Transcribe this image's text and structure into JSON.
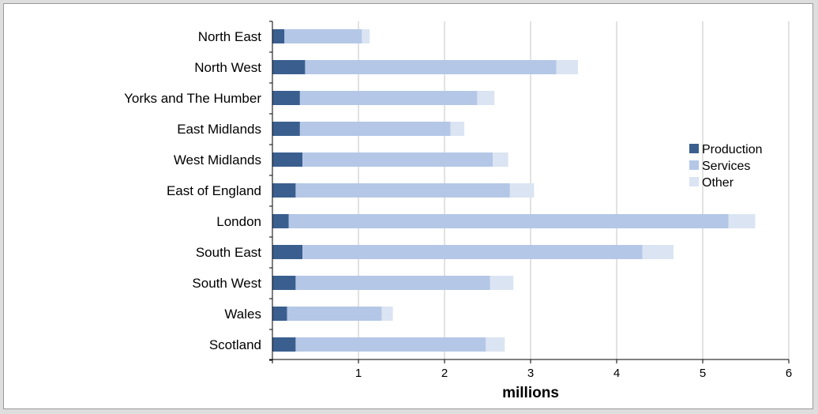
{
  "chart_data": {
    "type": "bar",
    "orientation": "horizontal",
    "stacked": true,
    "categories": [
      "North East",
      "North West",
      "Yorks and The Humber",
      "East Midlands",
      "West Midlands",
      "East of England",
      "London",
      "South East",
      "South West",
      "Wales",
      "Scotland"
    ],
    "series": [
      {
        "name": "Production",
        "color": "#3a5f8f",
        "values": [
          0.14,
          0.38,
          0.32,
          0.32,
          0.35,
          0.27,
          0.19,
          0.35,
          0.27,
          0.17,
          0.27
        ]
      },
      {
        "name": "Services",
        "color": "#b4c7e7",
        "values": [
          0.9,
          2.92,
          2.06,
          1.75,
          2.21,
          2.49,
          5.11,
          3.95,
          2.26,
          1.1,
          2.21
        ]
      },
      {
        "name": "Other",
        "color": "#dbe4f2",
        "values": [
          0.09,
          0.25,
          0.2,
          0.16,
          0.18,
          0.28,
          0.31,
          0.36,
          0.27,
          0.13,
          0.22
        ]
      }
    ],
    "xlabel": "millions",
    "xlim": [
      0,
      6
    ],
    "xticks": [
      "1",
      "2",
      "3",
      "4",
      "5",
      "6"
    ],
    "grid": true,
    "legend": "right"
  }
}
